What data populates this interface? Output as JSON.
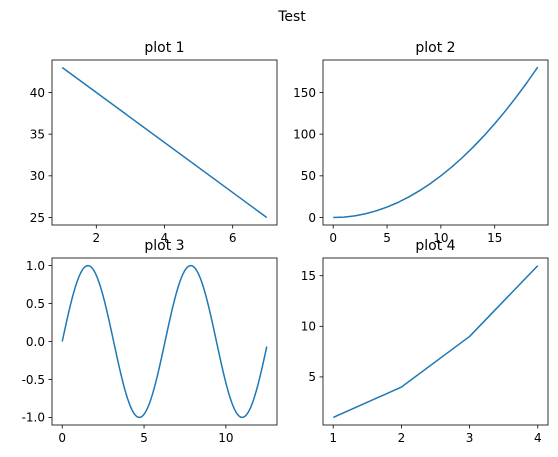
{
  "figure": {
    "suptitle": "Test",
    "line_color": "#1f77b4"
  },
  "chart_data": [
    {
      "type": "line",
      "title": "plot 1",
      "xlabel": "",
      "ylabel": "",
      "xlim": [
        0.7,
        7.3
      ],
      "ylim": [
        24.1,
        43.9
      ],
      "xticks": [
        2,
        4,
        6
      ],
      "yticks": [
        25,
        30,
        35,
        40
      ],
      "series": [
        {
          "x": [
            1,
            7
          ],
          "y": [
            43,
            25
          ]
        }
      ],
      "grid": false
    },
    {
      "type": "line",
      "title": "plot 2",
      "xlabel": "",
      "ylabel": "",
      "xlim": [
        -0.95,
        19.95
      ],
      "ylim": [
        -9.0,
        189.0
      ],
      "xticks": [
        0,
        5,
        10,
        15
      ],
      "yticks": [
        0,
        50,
        100,
        150
      ],
      "series": [
        {
          "x": [
            0,
            1,
            2,
            3,
            4,
            5,
            6,
            7,
            8,
            9,
            10,
            11,
            12,
            13,
            14,
            15,
            16,
            17,
            18,
            19
          ],
          "y": [
            0,
            0.5,
            2,
            4.5,
            8,
            12.5,
            18,
            24.5,
            32,
            40.5,
            50,
            60.5,
            72,
            84.5,
            98,
            112.5,
            128,
            144.5,
            162,
            180.5
          ]
        }
      ],
      "grid": false
    },
    {
      "type": "line",
      "title": "plot 3",
      "xlabel": "",
      "ylabel": "",
      "xlim": [
        -0.625,
        13.125
      ],
      "ylim": [
        -1.1,
        1.1
      ],
      "xticks": [
        0,
        5,
        10
      ],
      "yticks": [
        -1.0,
        -0.5,
        0.0,
        0.5,
        1.0
      ],
      "series": [
        {
          "function": "sin",
          "x_start": 0,
          "x_end": 12.5
        }
      ],
      "grid": false
    },
    {
      "type": "line",
      "title": "plot 4",
      "xlabel": "",
      "ylabel": "",
      "xlim": [
        0.85,
        4.15
      ],
      "ylim": [
        0.25,
        16.75
      ],
      "xticks": [
        1,
        2,
        3,
        4
      ],
      "yticks": [
        5,
        10,
        15
      ],
      "series": [
        {
          "x": [
            1,
            2,
            3,
            4
          ],
          "y": [
            1,
            4,
            9,
            16
          ]
        }
      ],
      "grid": false
    }
  ]
}
